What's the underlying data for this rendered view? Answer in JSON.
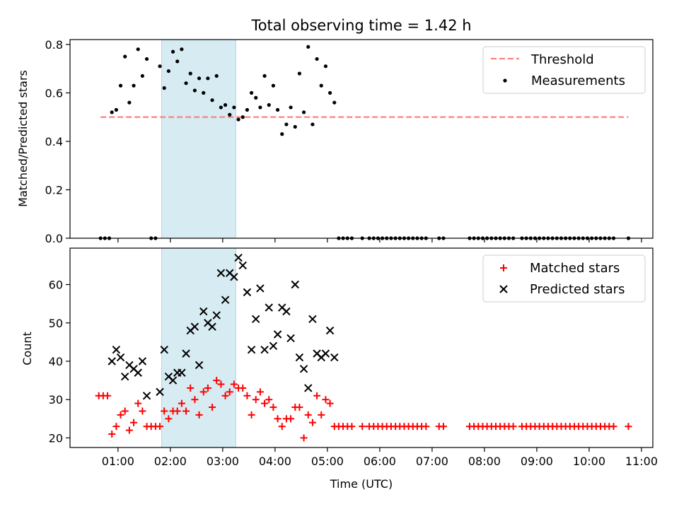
{
  "title": "Total observing time = 1.42 h",
  "chart_data": [
    {
      "type": "scatter",
      "ylabel": "Matched/Predicted stars",
      "ylim": [
        0,
        0.82
      ],
      "yticks": [
        "0.0",
        "0.2",
        "0.4",
        "0.6",
        "0.8"
      ],
      "ytick_values": [
        0,
        0.2,
        0.4,
        0.6,
        0.8
      ],
      "legend": [
        "Threshold",
        "Measurements"
      ],
      "legend_position": "top-right",
      "threshold": {
        "name": "Threshold",
        "value": 0.5,
        "x_start": "00:40",
        "x_end": "10:45",
        "color": "#ff7f7f"
      },
      "measurements": [
        [
          "00:40",
          0
        ],
        [
          "00:45",
          0
        ],
        [
          "00:50",
          0
        ],
        [
          "00:53",
          0.52
        ],
        [
          "00:58",
          0.53
        ],
        [
          "01:03",
          0.63
        ],
        [
          "01:08",
          0.75
        ],
        [
          "01:13",
          0.56
        ],
        [
          "01:18",
          0.63
        ],
        [
          "01:23",
          0.78
        ],
        [
          "01:28",
          0.67
        ],
        [
          "01:33",
          0.74
        ],
        [
          "01:38",
          0
        ],
        [
          "01:43",
          0
        ],
        [
          "01:48",
          0.71
        ],
        [
          "01:53",
          0.62
        ],
        [
          "01:58",
          0.69
        ],
        [
          "02:03",
          0.77
        ],
        [
          "02:08",
          0.73
        ],
        [
          "02:13",
          0.78
        ],
        [
          "02:18",
          0.64
        ],
        [
          "02:23",
          0.68
        ],
        [
          "02:28",
          0.61
        ],
        [
          "02:33",
          0.66
        ],
        [
          "02:38",
          0.6
        ],
        [
          "02:43",
          0.66
        ],
        [
          "02:48",
          0.57
        ],
        [
          "02:53",
          0.67
        ],
        [
          "02:58",
          0.54
        ],
        [
          "03:03",
          0.55
        ],
        [
          "03:08",
          0.51
        ],
        [
          "03:13",
          0.54
        ],
        [
          "03:18",
          0.49
        ],
        [
          "03:23",
          0.5
        ],
        [
          "03:28",
          0.53
        ],
        [
          "03:33",
          0.6
        ],
        [
          "03:38",
          0.58
        ],
        [
          "03:43",
          0.54
        ],
        [
          "03:48",
          0.67
        ],
        [
          "03:53",
          0.55
        ],
        [
          "03:58",
          0.63
        ],
        [
          "04:03",
          0.53
        ],
        [
          "04:08",
          0.43
        ],
        [
          "04:13",
          0.47
        ],
        [
          "04:18",
          0.54
        ],
        [
          "04:23",
          0.46
        ],
        [
          "04:28",
          0.68
        ],
        [
          "04:33",
          0.52
        ],
        [
          "04:38",
          0.79
        ],
        [
          "04:43",
          0.47
        ],
        [
          "04:48",
          0.74
        ],
        [
          "04:53",
          0.63
        ],
        [
          "04:58",
          0.71
        ],
        [
          "05:03",
          0.6
        ],
        [
          "05:08",
          0.56
        ],
        [
          "05:13",
          0
        ],
        [
          "05:18",
          0
        ],
        [
          "05:23",
          0
        ],
        [
          "05:28",
          0
        ],
        [
          "05:40",
          0
        ],
        [
          "05:48",
          0
        ],
        [
          "05:53",
          0
        ],
        [
          "05:58",
          0
        ],
        [
          "06:03",
          0
        ],
        [
          "06:08",
          0
        ],
        [
          "06:13",
          0
        ],
        [
          "06:18",
          0
        ],
        [
          "06:23",
          0
        ],
        [
          "06:28",
          0
        ],
        [
          "06:33",
          0
        ],
        [
          "06:38",
          0
        ],
        [
          "06:43",
          0
        ],
        [
          "06:48",
          0
        ],
        [
          "06:53",
          0
        ],
        [
          "07:08",
          0
        ],
        [
          "07:13",
          0
        ],
        [
          "07:43",
          0
        ],
        [
          "07:48",
          0
        ],
        [
          "07:53",
          0
        ],
        [
          "07:58",
          0
        ],
        [
          "08:03",
          0
        ],
        [
          "08:08",
          0
        ],
        [
          "08:13",
          0
        ],
        [
          "08:18",
          0
        ],
        [
          "08:23",
          0
        ],
        [
          "08:28",
          0
        ],
        [
          "08:33",
          0
        ],
        [
          "08:43",
          0
        ],
        [
          "08:48",
          0
        ],
        [
          "08:53",
          0
        ],
        [
          "08:58",
          0
        ],
        [
          "09:03",
          0
        ],
        [
          "09:08",
          0
        ],
        [
          "09:13",
          0
        ],
        [
          "09:18",
          0
        ],
        [
          "09:23",
          0
        ],
        [
          "09:28",
          0
        ],
        [
          "09:33",
          0
        ],
        [
          "09:38",
          0
        ],
        [
          "09:43",
          0
        ],
        [
          "09:48",
          0
        ],
        [
          "09:53",
          0
        ],
        [
          "09:58",
          0
        ],
        [
          "10:03",
          0
        ],
        [
          "10:08",
          0
        ],
        [
          "10:13",
          0
        ],
        [
          "10:18",
          0
        ],
        [
          "10:23",
          0
        ],
        [
          "10:28",
          0
        ],
        [
          "10:45",
          0
        ]
      ]
    },
    {
      "type": "scatter",
      "ylabel": "Count",
      "xlabel": "Time (UTC)",
      "ylim": [
        17.5,
        69.5
      ],
      "yticks": [
        "20",
        "30",
        "40",
        "50",
        "60"
      ],
      "ytick_values": [
        20,
        30,
        40,
        50,
        60
      ],
      "xlim": [
        "00:05",
        "11:13"
      ],
      "xticks": [
        "01:00",
        "02:00",
        "03:00",
        "04:00",
        "05:00",
        "06:00",
        "07:00",
        "08:00",
        "09:00",
        "10:00",
        "11:00"
      ],
      "legend": [
        "Matched stars",
        "Predicted stars"
      ],
      "legend_position": "top-right",
      "series": [
        {
          "name": "Matched stars",
          "marker": "plus",
          "color": "#ff0000",
          "points": [
            [
              "00:38",
              31
            ],
            [
              "00:43",
              31
            ],
            [
              "00:48",
              31
            ],
            [
              "00:53",
              21
            ],
            [
              "00:58",
              23
            ],
            [
              "01:03",
              26
            ],
            [
              "01:08",
              27
            ],
            [
              "01:13",
              22
            ],
            [
              "01:18",
              24
            ],
            [
              "01:23",
              29
            ],
            [
              "01:28",
              27
            ],
            [
              "01:33",
              23
            ],
            [
              "01:38",
              23
            ],
            [
              "01:43",
              23
            ],
            [
              "01:48",
              23
            ],
            [
              "01:53",
              27
            ],
            [
              "01:58",
              25
            ],
            [
              "02:03",
              27
            ],
            [
              "02:08",
              27
            ],
            [
              "02:13",
              29
            ],
            [
              "02:18",
              27
            ],
            [
              "02:23",
              33
            ],
            [
              "02:28",
              30
            ],
            [
              "02:33",
              26
            ],
            [
              "02:38",
              32
            ],
            [
              "02:43",
              33
            ],
            [
              "02:48",
              28
            ],
            [
              "02:53",
              35
            ],
            [
              "02:58",
              34
            ],
            [
              "03:03",
              31
            ],
            [
              "03:08",
              32
            ],
            [
              "03:13",
              34
            ],
            [
              "03:18",
              33
            ],
            [
              "03:23",
              33
            ],
            [
              "03:28",
              31
            ],
            [
              "03:33",
              26
            ],
            [
              "03:38",
              30
            ],
            [
              "03:43",
              32
            ],
            [
              "03:48",
              29
            ],
            [
              "03:53",
              30
            ],
            [
              "03:58",
              28
            ],
            [
              "04:03",
              25
            ],
            [
              "04:08",
              23
            ],
            [
              "04:13",
              25
            ],
            [
              "04:18",
              25
            ],
            [
              "04:23",
              28
            ],
            [
              "04:28",
              28
            ],
            [
              "04:33",
              20
            ],
            [
              "04:38",
              26
            ],
            [
              "04:43",
              24
            ],
            [
              "04:48",
              31
            ],
            [
              "04:53",
              26
            ],
            [
              "04:58",
              30
            ],
            [
              "05:03",
              29
            ],
            [
              "05:08",
              23
            ],
            [
              "05:13",
              23
            ],
            [
              "05:18",
              23
            ],
            [
              "05:23",
              23
            ],
            [
              "05:28",
              23
            ],
            [
              "05:40",
              23
            ],
            [
              "05:48",
              23
            ],
            [
              "05:53",
              23
            ],
            [
              "05:58",
              23
            ],
            [
              "06:03",
              23
            ],
            [
              "06:08",
              23
            ],
            [
              "06:13",
              23
            ],
            [
              "06:18",
              23
            ],
            [
              "06:23",
              23
            ],
            [
              "06:28",
              23
            ],
            [
              "06:33",
              23
            ],
            [
              "06:38",
              23
            ],
            [
              "06:43",
              23
            ],
            [
              "06:48",
              23
            ],
            [
              "06:53",
              23
            ],
            [
              "07:08",
              23
            ],
            [
              "07:13",
              23
            ],
            [
              "07:43",
              23
            ],
            [
              "07:48",
              23
            ],
            [
              "07:53",
              23
            ],
            [
              "07:58",
              23
            ],
            [
              "08:03",
              23
            ],
            [
              "08:08",
              23
            ],
            [
              "08:13",
              23
            ],
            [
              "08:18",
              23
            ],
            [
              "08:23",
              23
            ],
            [
              "08:28",
              23
            ],
            [
              "08:33",
              23
            ],
            [
              "08:43",
              23
            ],
            [
              "08:48",
              23
            ],
            [
              "08:53",
              23
            ],
            [
              "08:58",
              23
            ],
            [
              "09:03",
              23
            ],
            [
              "09:08",
              23
            ],
            [
              "09:13",
              23
            ],
            [
              "09:18",
              23
            ],
            [
              "09:23",
              23
            ],
            [
              "09:28",
              23
            ],
            [
              "09:33",
              23
            ],
            [
              "09:38",
              23
            ],
            [
              "09:43",
              23
            ],
            [
              "09:48",
              23
            ],
            [
              "09:53",
              23
            ],
            [
              "09:58",
              23
            ],
            [
              "10:03",
              23
            ],
            [
              "10:08",
              23
            ],
            [
              "10:13",
              23
            ],
            [
              "10:18",
              23
            ],
            [
              "10:23",
              23
            ],
            [
              "10:28",
              23
            ],
            [
              "10:45",
              23
            ]
          ]
        },
        {
          "name": "Predicted stars",
          "marker": "x",
          "color": "#000000",
          "points": [
            [
              "00:53",
              40
            ],
            [
              "00:58",
              43
            ],
            [
              "01:03",
              41
            ],
            [
              "01:08",
              36
            ],
            [
              "01:13",
              39
            ],
            [
              "01:18",
              38
            ],
            [
              "01:23",
              37
            ],
            [
              "01:28",
              40
            ],
            [
              "01:33",
              31
            ],
            [
              "01:48",
              32
            ],
            [
              "01:53",
              43
            ],
            [
              "01:58",
              36
            ],
            [
              "02:03",
              35
            ],
            [
              "02:08",
              37
            ],
            [
              "02:13",
              37
            ],
            [
              "02:18",
              42
            ],
            [
              "02:23",
              48
            ],
            [
              "02:28",
              49
            ],
            [
              "02:33",
              39
            ],
            [
              "02:38",
              53
            ],
            [
              "02:43",
              50
            ],
            [
              "02:48",
              49
            ],
            [
              "02:53",
              52
            ],
            [
              "02:58",
              63
            ],
            [
              "03:03",
              56
            ],
            [
              "03:08",
              63
            ],
            [
              "03:13",
              62
            ],
            [
              "03:18",
              67
            ],
            [
              "03:23",
              65
            ],
            [
              "03:28",
              58
            ],
            [
              "03:33",
              43
            ],
            [
              "03:38",
              51
            ],
            [
              "03:43",
              59
            ],
            [
              "03:48",
              43
            ],
            [
              "03:53",
              54
            ],
            [
              "03:58",
              44
            ],
            [
              "04:03",
              47
            ],
            [
              "04:08",
              54
            ],
            [
              "04:13",
              53
            ],
            [
              "04:18",
              46
            ],
            [
              "04:23",
              60
            ],
            [
              "04:28",
              41
            ],
            [
              "04:33",
              38
            ],
            [
              "04:38",
              33
            ],
            [
              "04:43",
              51
            ],
            [
              "04:48",
              42
            ],
            [
              "04:53",
              41
            ],
            [
              "04:58",
              42
            ],
            [
              "05:03",
              48
            ],
            [
              "05:08",
              41
            ]
          ]
        }
      ]
    }
  ],
  "highlight": {
    "x_start": "01:50",
    "x_end": "03:15",
    "color": "#add8e6"
  }
}
